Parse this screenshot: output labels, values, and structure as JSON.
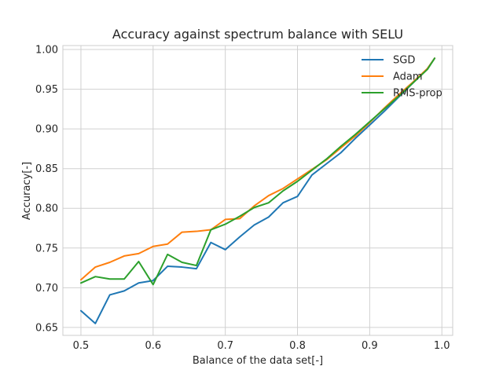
{
  "chart_data": {
    "type": "line",
    "title": "Accuracy against spectrum balance with SELU",
    "xlabel": "Balance of the data set[-]",
    "ylabel": "Accuracy[-]",
    "xlim": [
      0.475,
      1.015
    ],
    "ylim": [
      0.64,
      1.005
    ],
    "xticks": [
      0.5,
      0.6,
      0.7,
      0.8,
      0.9,
      1.0
    ],
    "xtick_labels": [
      "0.5",
      "0.6",
      "0.7",
      "0.8",
      "0.9",
      "1.0"
    ],
    "yticks": [
      0.65,
      0.7,
      0.75,
      0.8,
      0.85,
      0.9,
      0.95,
      1.0
    ],
    "ytick_labels": [
      "0.65",
      "0.70",
      "0.75",
      "0.80",
      "0.85",
      "0.90",
      "0.95",
      "1.00"
    ],
    "grid": true,
    "legend_position": "top-right",
    "x": [
      0.5,
      0.52,
      0.54,
      0.56,
      0.58,
      0.6,
      0.62,
      0.64,
      0.66,
      0.68,
      0.7,
      0.72,
      0.74,
      0.76,
      0.78,
      0.8,
      0.82,
      0.84,
      0.86,
      0.88,
      0.9,
      0.92,
      0.94,
      0.96,
      0.98,
      0.99
    ],
    "series": [
      {
        "name": "SGD",
        "color": "#1f77b4",
        "values": [
          0.671,
          0.655,
          0.691,
          0.696,
          0.706,
          0.709,
          0.727,
          0.726,
          0.724,
          0.757,
          0.748,
          0.764,
          0.779,
          0.789,
          0.807,
          0.815,
          0.842,
          0.856,
          0.87,
          0.888,
          0.905,
          0.922,
          0.94,
          0.958,
          0.976,
          0.989
        ]
      },
      {
        "name": "Adam",
        "color": "#ff7f0e",
        "values": [
          0.71,
          0.726,
          0.732,
          0.74,
          0.743,
          0.752,
          0.755,
          0.77,
          0.771,
          0.773,
          0.786,
          0.787,
          0.803,
          0.816,
          0.825,
          0.837,
          0.849,
          0.861,
          0.876,
          0.891,
          0.908,
          0.926,
          0.943,
          0.959,
          0.976,
          0.989
        ]
      },
      {
        "name": "RMS-prop",
        "color": "#2ca02c",
        "values": [
          0.706,
          0.714,
          0.711,
          0.711,
          0.733,
          0.704,
          0.742,
          0.732,
          0.728,
          0.773,
          0.78,
          0.79,
          0.801,
          0.807,
          0.822,
          0.834,
          0.848,
          0.862,
          0.878,
          0.893,
          0.909,
          0.925,
          0.941,
          0.958,
          0.975,
          0.989
        ]
      }
    ]
  }
}
